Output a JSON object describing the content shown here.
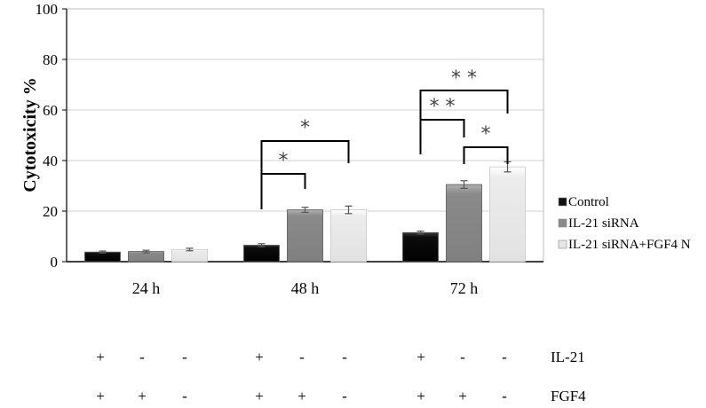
{
  "chart_data": {
    "type": "bar",
    "title": "",
    "xlabel": "",
    "ylabel": "Cytotoxicity %",
    "ylim": [
      0,
      100
    ],
    "yticks": [
      0,
      20,
      40,
      60,
      80,
      100
    ],
    "grid": true,
    "legend_position": "right",
    "categories": [
      "24 h",
      "48 h",
      "72 h"
    ],
    "series": [
      {
        "name": "Control",
        "color": "#111111",
        "values": [
          3.8,
          6.5,
          11.5
        ],
        "errors": [
          0.4,
          0.6,
          0.6
        ]
      },
      {
        "name": "IL-21 siRNA",
        "color": "#8a8a8a",
        "values": [
          4.0,
          20.5,
          30.5
        ],
        "errors": [
          0.5,
          1.0,
          1.5
        ]
      },
      {
        "name": "IL-21 siRNA+FGF4 N",
        "color": "#e6e6e6",
        "values": [
          4.8,
          20.5,
          37.5
        ],
        "errors": [
          0.5,
          1.5,
          2.0
        ]
      }
    ],
    "significance": [
      {
        "category": "48 h",
        "from": "Control",
        "to": "IL-21 siRNA",
        "label": "*"
      },
      {
        "category": "48 h",
        "from": "Control",
        "to": "IL-21 siRNA+FGF4 N",
        "label": "*"
      },
      {
        "category": "72 h",
        "from": "Control",
        "to": "IL-21 siRNA",
        "label": "**"
      },
      {
        "category": "72 h",
        "from": "Control",
        "to": "IL-21 siRNA+FGF4 N",
        "label": "**"
      },
      {
        "category": "72 h",
        "from": "IL-21 siRNA",
        "to": "IL-21 siRNA+FGF4 N",
        "label": "*"
      }
    ],
    "treatment_table": {
      "rows": [
        {
          "label": "IL-21",
          "values": [
            "+",
            "-",
            "-",
            "+",
            "-",
            "-",
            "+",
            "-",
            "-"
          ]
        },
        {
          "label": "FGF4",
          "values": [
            "+",
            "+",
            "-",
            "+",
            "+",
            "-",
            "+",
            "+",
            "-"
          ]
        }
      ]
    }
  }
}
